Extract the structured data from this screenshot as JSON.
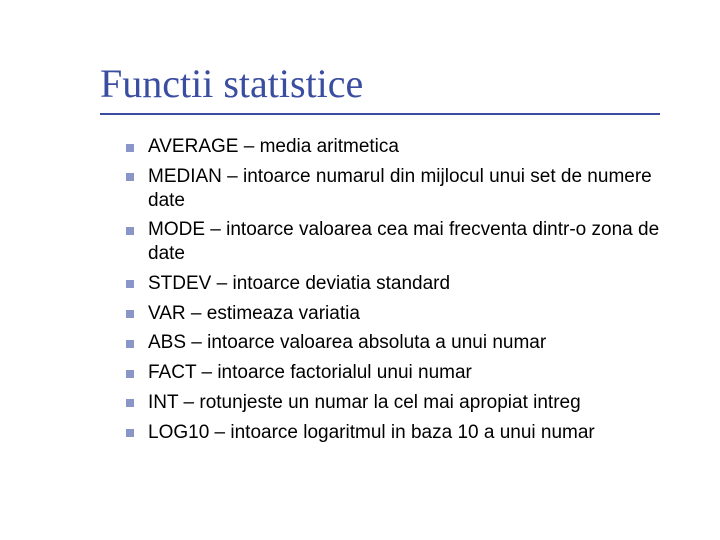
{
  "slide": {
    "title": "Functii statistice",
    "title_color": "#3a4da0",
    "title_fontsize": 40,
    "rule_color": "#3a4da0",
    "bullet_color": "#8a95c8",
    "text_color": "#000000",
    "body_fontsize": 19,
    "background_color": "#ffffff",
    "items": [
      "AVERAGE – media aritmetica",
      "MEDIAN – intoarce numarul din mijlocul unui set de numere date",
      "MODE – intoarce valoarea cea mai frecventa dintr-o zona de date",
      "STDEV – intoarce deviatia standard",
      "VAR – estimeaza variatia",
      "ABS – intoarce valoarea absoluta a unui numar",
      "FACT – intoarce factorialul unui numar",
      "INT – rotunjeste un numar la cel mai apropiat intreg",
      "LOG10 – intoarce logaritmul in baza 10 a unui numar"
    ]
  }
}
